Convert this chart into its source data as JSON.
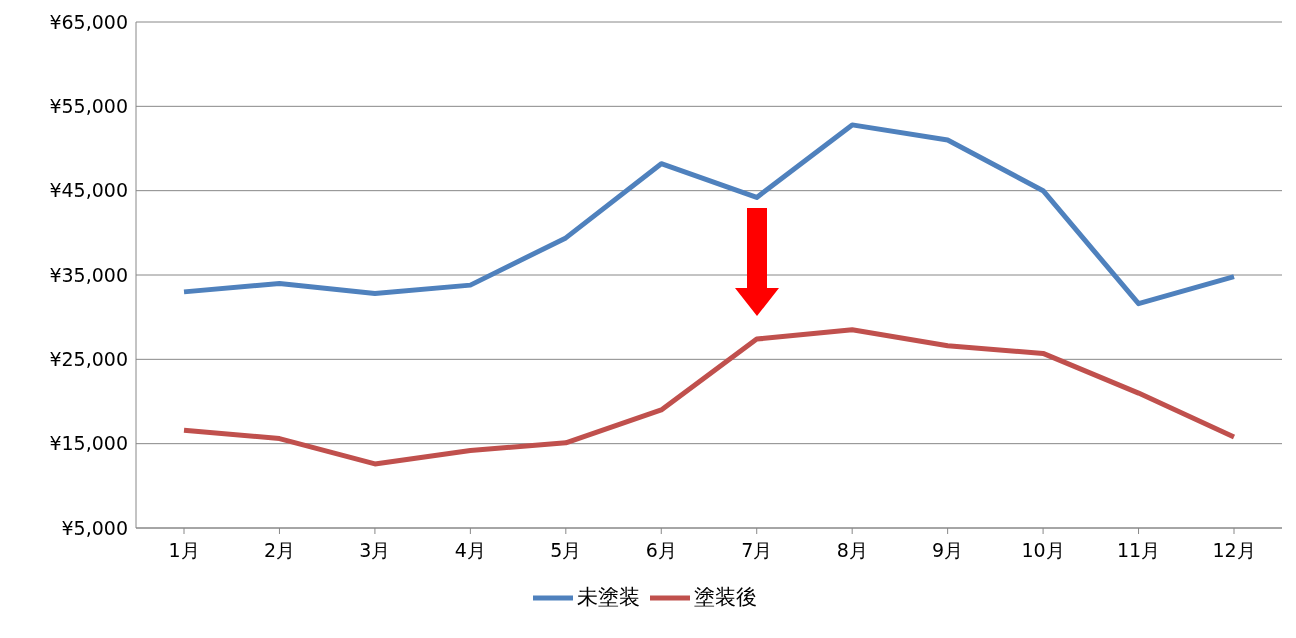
{
  "chart_data": {
    "type": "line",
    "categories": [
      "1月",
      "2月",
      "3月",
      "4月",
      "5月",
      "6月",
      "7月",
      "8月",
      "9月",
      "10月",
      "11月",
      "12月"
    ],
    "series": [
      {
        "name": "未塗装",
        "color": "#4f81bd",
        "values": [
          33000,
          34000,
          32800,
          33800,
          39400,
          48200,
          44200,
          52800,
          51000,
          45000,
          31600,
          34800
        ]
      },
      {
        "name": "塗装後",
        "color": "#c0504d",
        "values": [
          16600,
          15600,
          12600,
          14200,
          15100,
          19000,
          27400,
          28500,
          26600,
          25700,
          21000,
          15800
        ]
      }
    ],
    "ylim": [
      5000,
      65000
    ],
    "yticks": [
      {
        "value": 5000,
        "label": "¥5,000"
      },
      {
        "value": 15000,
        "label": "¥15,000"
      },
      {
        "value": 25000,
        "label": "¥25,000"
      },
      {
        "value": 35000,
        "label": "¥35,000"
      },
      {
        "value": 45000,
        "label": "¥45,000"
      },
      {
        "value": 55000,
        "label": "¥55,000"
      },
      {
        "value": 65000,
        "label": "¥65,000"
      }
    ],
    "grid": "y",
    "legend": "bottom",
    "marker": "none",
    "line_style": "solid"
  }
}
